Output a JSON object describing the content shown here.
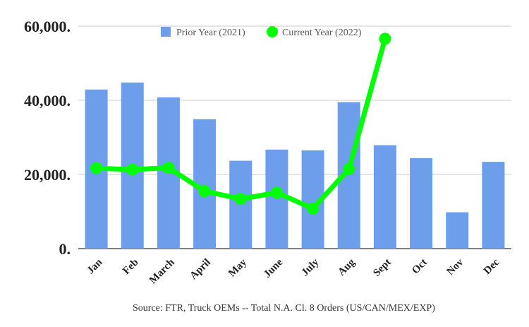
{
  "chart_data": {
    "type": "bar",
    "categories": [
      "Jan",
      "Feb",
      "March",
      "April",
      "May",
      "June",
      "July",
      "Aug",
      "Sept",
      "Oct",
      "Nov",
      "Dec"
    ],
    "series": [
      {
        "name": "Prior Year (2021)",
        "kind": "bar",
        "color": "#6d9eeb",
        "values": [
          42900,
          44800,
          40800,
          34900,
          23700,
          26700,
          26500,
          39500,
          27900,
          24400,
          9800,
          23400
        ]
      },
      {
        "name": "Current Year (2022)",
        "kind": "line",
        "color": "#00ff00",
        "values": [
          21700,
          21300,
          21800,
          15500,
          13400,
          15100,
          10800,
          21500,
          56600,
          null,
          null,
          null
        ]
      }
    ],
    "ylim": [
      0,
      60000
    ],
    "yticks": [
      0,
      20000,
      40000,
      60000
    ],
    "ytick_labels": [
      "0.",
      "20,000.",
      "40,000.",
      "60,000."
    ],
    "grid": true,
    "legend": "top",
    "source": "Source: FTR, Truck OEMs -- Total N.A. Cl. 8 Orders (US/CAN/MEX/EXP)"
  }
}
